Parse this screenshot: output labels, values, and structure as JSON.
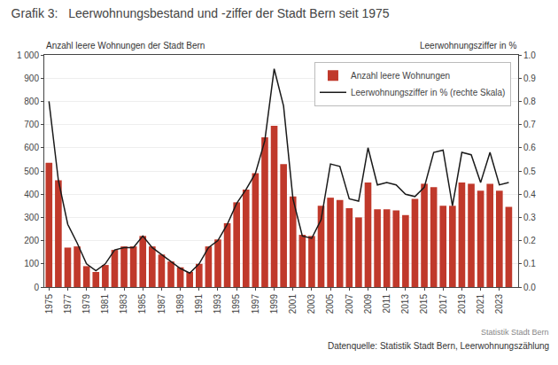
{
  "chart_data": {
    "type": "bar",
    "title": "Grafik 3:   Leerwohnungsbestand und -ziffer der Stadt Bern seit 1975",
    "ylabel": "Anzahl leere Wohnungen der Stadt Bern",
    "y2label": "Leerwohnungsziffer in %",
    "annotations": [
      "Statistik Stadt Bern",
      "Datenquelle: Statistik Stadt Bern, Leerwohnungszählung"
    ],
    "x": [
      1975,
      1976,
      1977,
      1978,
      1979,
      1980,
      1981,
      1982,
      1983,
      1984,
      1985,
      1986,
      1987,
      1988,
      1989,
      1990,
      1991,
      1992,
      1993,
      1994,
      1995,
      1996,
      1997,
      1998,
      1999,
      2000,
      2001,
      2002,
      2003,
      2004,
      2005,
      2006,
      2007,
      2008,
      2009,
      2010,
      2011,
      2012,
      2013,
      2014,
      2015,
      2016,
      2017,
      2018,
      2019,
      2020,
      2021,
      2022,
      2023,
      2024
    ],
    "series": [
      {
        "name": "Anzahl leere Wohnungen",
        "type": "bar",
        "color": "#c0392b",
        "values": [
          535,
          460,
          170,
          175,
          90,
          65,
          95,
          160,
          175,
          175,
          220,
          175,
          140,
          110,
          85,
          65,
          100,
          175,
          205,
          275,
          365,
          420,
          490,
          645,
          695,
          530,
          390,
          225,
          220,
          350,
          385,
          375,
          340,
          300,
          450,
          335,
          335,
          330,
          310,
          380,
          445,
          430,
          350,
          350,
          450,
          445,
          415,
          445,
          415,
          345
        ]
      },
      {
        "name": "Leerwohnungsziffer in % (rechte Skala)",
        "type": "line",
        "color": "#1a1a1a",
        "axis": "y2",
        "values": [
          0.8,
          0.46,
          0.27,
          0.19,
          0.1,
          0.07,
          0.1,
          0.16,
          0.17,
          0.17,
          0.22,
          0.17,
          0.14,
          0.11,
          0.08,
          0.06,
          0.1,
          0.17,
          0.2,
          0.27,
          0.36,
          0.42,
          0.49,
          0.63,
          0.94,
          0.78,
          0.38,
          0.22,
          0.21,
          0.29,
          0.53,
          0.52,
          0.38,
          0.37,
          0.6,
          0.44,
          0.45,
          0.44,
          0.4,
          0.39,
          0.43,
          0.58,
          0.59,
          0.35,
          0.58,
          0.57,
          0.45,
          0.58,
          0.44,
          0.45
        ]
      }
    ],
    "xlim": [
      1974.5,
      2025.0
    ],
    "xticks": [
      1975,
      1977,
      1979,
      1981,
      1983,
      1985,
      1987,
      1989,
      1991,
      1993,
      1995,
      1997,
      1999,
      2001,
      2003,
      2005,
      2007,
      2009,
      2011,
      2013,
      2015,
      2017,
      2019,
      2021,
      2023
    ],
    "ylim": [
      0,
      1000
    ],
    "yticks": [
      0,
      100,
      200,
      300,
      400,
      500,
      600,
      700,
      800,
      900,
      {
        "value": 1000,
        "label": "1 000"
      }
    ],
    "y2lim": [
      0.0,
      1.0
    ],
    "y2ticks": [
      {
        "value": 0.0,
        "label": "0.0"
      },
      0.1,
      0.2,
      0.3,
      0.4,
      0.5,
      0.6,
      0.7,
      0.8,
      0.9,
      {
        "value": 1.0,
        "label": "1.0"
      }
    ],
    "grid": true,
    "legend": "upper right"
  }
}
